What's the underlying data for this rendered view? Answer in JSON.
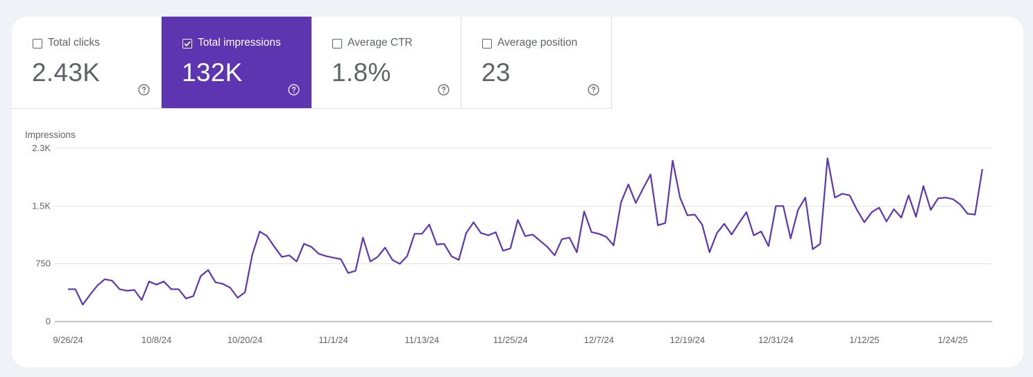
{
  "metrics": [
    {
      "label": "Total clicks",
      "value": "2.43K",
      "checked": false
    },
    {
      "label": "Total impressions",
      "value": "132K",
      "checked": true
    },
    {
      "label": "Average CTR",
      "value": "1.8%",
      "checked": false
    },
    {
      "label": "Average position",
      "value": "23",
      "checked": false
    }
  ],
  "colors": {
    "accent": "#5e35b1",
    "line": "#5e35b1",
    "grid": "#e0e0e0"
  },
  "icons": {
    "help": "help-circle-icon",
    "check": "checkmark-icon"
  },
  "chart_data": {
    "type": "line",
    "title": "Impressions",
    "xlabel": "",
    "ylabel": "Impressions",
    "ylim": [
      0,
      2250
    ],
    "y_ticks": [
      0,
      750,
      1500,
      2250
    ],
    "y_tick_labels": [
      "0",
      "750",
      "1.5K",
      "2.3K"
    ],
    "x_tick_labels": [
      "9/26/24",
      "10/8/24",
      "10/20/24",
      "11/1/24",
      "11/13/24",
      "11/25/24",
      "12/7/24",
      "12/19/24",
      "12/31/24",
      "1/12/25",
      "1/24/25"
    ],
    "x_tick_dates": [
      "2024-09-26",
      "2024-10-08",
      "2024-10-20",
      "2024-11-01",
      "2024-11-13",
      "2024-11-25",
      "2024-12-07",
      "2024-12-19",
      "2024-12-31",
      "2025-01-12",
      "2025-01-24"
    ],
    "grid": true,
    "series": [
      {
        "x_start": "2024-09-26",
        "values": [
          420,
          420,
          220,
          350,
          470,
          550,
          530,
          420,
          400,
          410,
          280,
          520,
          480,
          520,
          420,
          420,
          300,
          330,
          590,
          670,
          510,
          490,
          440,
          310,
          380,
          870,
          1170,
          1110,
          970,
          840,
          860,
          780,
          1010,
          970,
          880,
          850,
          830,
          810,
          630,
          660,
          1090,
          780,
          840,
          960,
          800,
          750,
          850,
          1140,
          1140,
          1260,
          1000,
          1010,
          850,
          800,
          1150,
          1290,
          1150,
          1120,
          1160,
          920,
          950,
          1320,
          1110,
          1130,
          1050,
          970,
          860,
          1070,
          1090,
          900,
          1430,
          1160,
          1140,
          1100,
          990,
          1550,
          1780,
          1540,
          1730,
          1910,
          1250,
          1280,
          2090,
          1610,
          1380,
          1390,
          1260,
          900,
          1150,
          1270,
          1130,
          1280,
          1420,
          1120,
          1170,
          980,
          1500,
          1500,
          1080,
          1450,
          1610,
          940,
          1010,
          2120,
          1610,
          1660,
          1640,
          1450,
          1290,
          1420,
          1480,
          1300,
          1460,
          1350,
          1640,
          1360,
          1760,
          1450,
          1600,
          1610,
          1590,
          1520,
          1400,
          1390,
          1980
        ]
      }
    ]
  }
}
